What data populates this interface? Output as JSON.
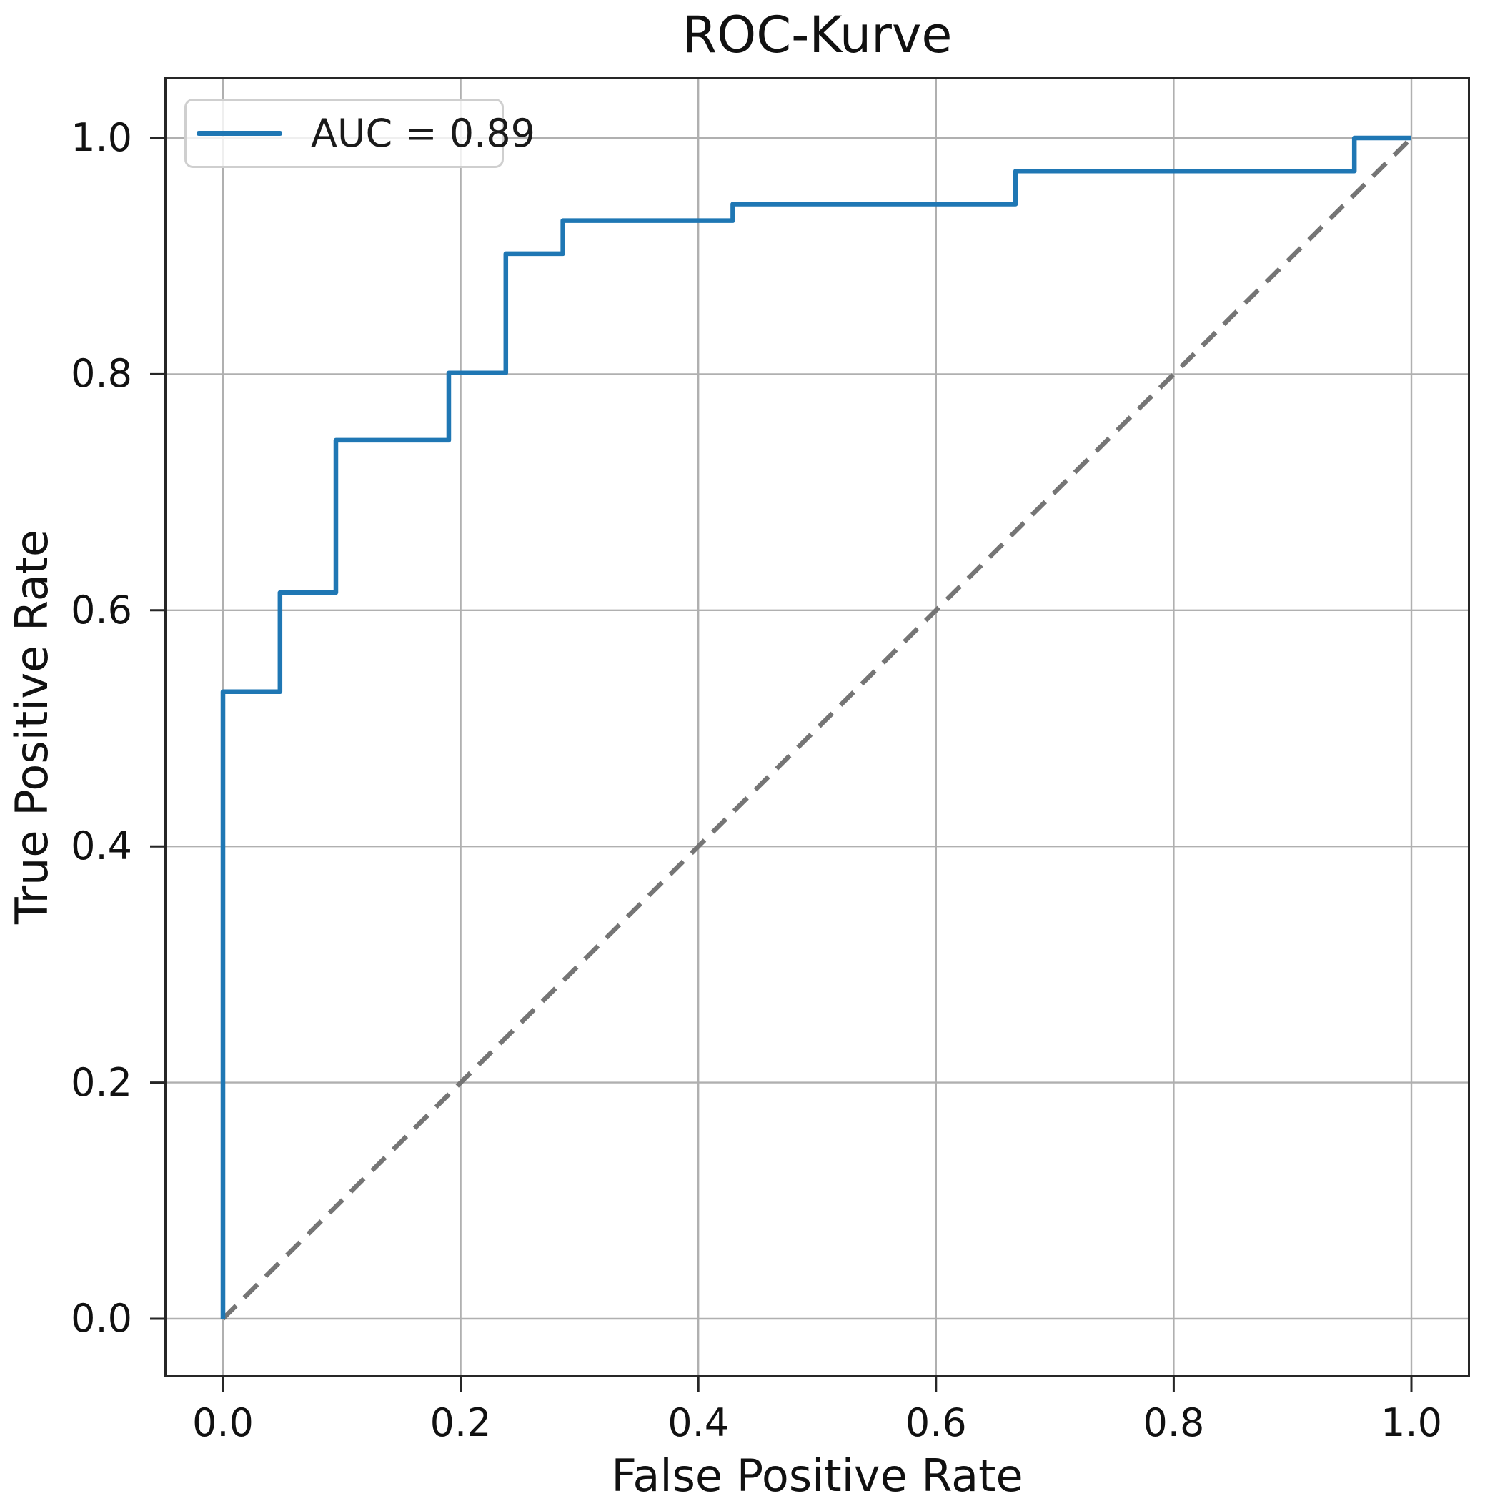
{
  "chart_data": {
    "type": "line",
    "title": "ROC-Kurve",
    "x_axis": {
      "label": "False Positive Rate",
      "ticks": [
        0.0,
        0.2,
        0.4,
        0.6,
        0.8,
        1.0
      ],
      "range": [
        0.0,
        1.0
      ]
    },
    "y_axis": {
      "label": "True Positive Rate",
      "ticks": [
        0.0,
        0.2,
        0.4,
        0.6,
        0.8,
        1.0
      ],
      "range": [
        0.0,
        1.0
      ]
    },
    "grid": true,
    "legend": {
      "position": "upper left",
      "entries": [
        {
          "label": "AUC = 0.89",
          "color": "#1f77b4",
          "style": "solid"
        }
      ]
    },
    "auc": 0.89,
    "series": [
      {
        "name": "ROC curve",
        "draw_style": "steps",
        "color": "#1f77b4",
        "points": [
          [
            0.0,
            0.0
          ],
          [
            0.0,
            0.531
          ],
          [
            0.048,
            0.531
          ],
          [
            0.048,
            0.615
          ],
          [
            0.095,
            0.615
          ],
          [
            0.095,
            0.744
          ],
          [
            0.19,
            0.744
          ],
          [
            0.19,
            0.801
          ],
          [
            0.238,
            0.801
          ],
          [
            0.238,
            0.902
          ],
          [
            0.286,
            0.902
          ],
          [
            0.286,
            0.93
          ],
          [
            0.429,
            0.93
          ],
          [
            0.429,
            0.944
          ],
          [
            0.667,
            0.944
          ],
          [
            0.667,
            0.972
          ],
          [
            0.952,
            0.972
          ],
          [
            0.952,
            1.0
          ],
          [
            1.0,
            1.0
          ]
        ]
      }
    ],
    "reference_line": {
      "name": "chance diagonal",
      "style": "dashed",
      "color": "#757575",
      "points": [
        [
          0.0,
          0.0
        ],
        [
          1.0,
          1.0
        ]
      ]
    }
  },
  "colors": {
    "curve": "#1f77b4",
    "diagonal": "#757575",
    "grid": "#b0b0b0",
    "spine": "#262626",
    "text": "#111111",
    "legend_border": "#cfcfcf"
  }
}
